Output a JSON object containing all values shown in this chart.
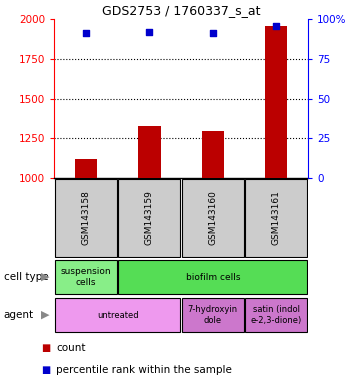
{
  "title": "GDS2753 / 1760337_s_at",
  "samples": [
    "GSM143158",
    "GSM143159",
    "GSM143160",
    "GSM143161"
  ],
  "counts": [
    1120,
    1330,
    1295,
    1960
  ],
  "percentile_ranks": [
    91,
    92,
    91,
    96
  ],
  "ylim_left": [
    1000,
    2000
  ],
  "ylim_right": [
    0,
    100
  ],
  "yticks_left": [
    1000,
    1250,
    1500,
    1750,
    2000
  ],
  "yticks_right": [
    0,
    25,
    50,
    75,
    100
  ],
  "bar_color": "#bb0000",
  "dot_color": "#0000cc",
  "gray_box_color": "#cccccc",
  "cell_type_row": [
    {
      "label": "suspension\ncells",
      "span": 1,
      "color": "#88ee88"
    },
    {
      "label": "biofilm cells",
      "span": 3,
      "color": "#55dd55"
    }
  ],
  "agent_row": [
    {
      "label": "untreated",
      "span": 2,
      "color": "#ee99ee"
    },
    {
      "label": "7-hydroxyin\ndole",
      "span": 1,
      "color": "#cc77cc"
    },
    {
      "label": "satin (indol\ne-2,3-dione)",
      "span": 1,
      "color": "#cc77cc"
    }
  ],
  "cell_type_label": "cell type",
  "agent_label": "agent",
  "legend_count": "count",
  "legend_pct": "percentile rank within the sample",
  "bar_width": 0.35
}
